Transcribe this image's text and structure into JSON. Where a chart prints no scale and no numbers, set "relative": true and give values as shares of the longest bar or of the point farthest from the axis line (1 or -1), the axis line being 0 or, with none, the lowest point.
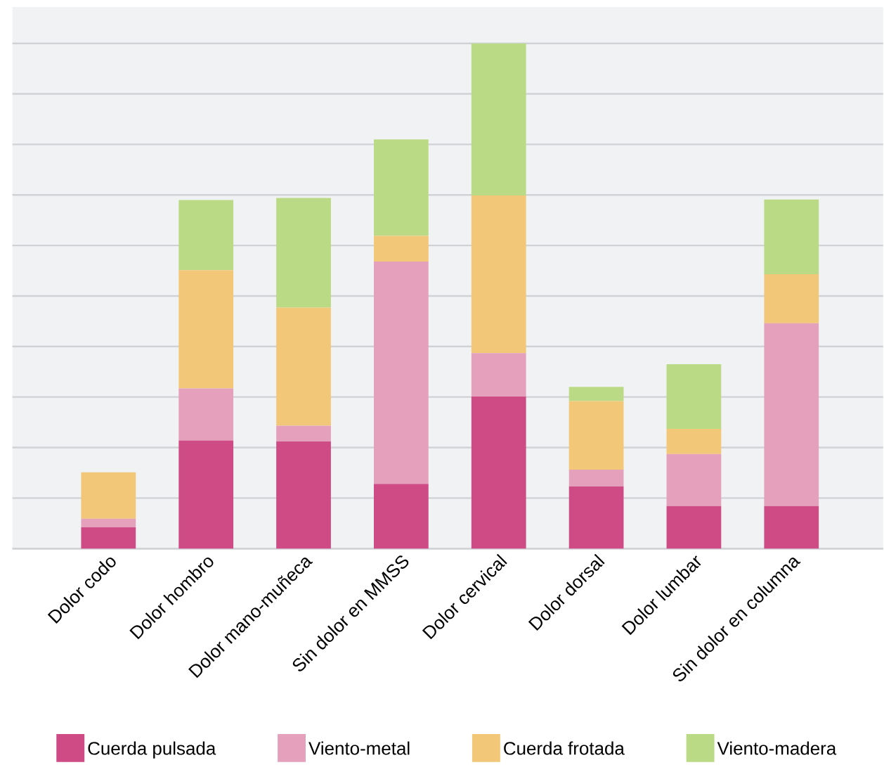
{
  "chart_data": {
    "type": "bar",
    "stacked": true,
    "relative": true,
    "grid": "y",
    "legend": "bottom",
    "categories": [
      "Dolor codo",
      "Dolor hombro",
      "Dolor mano-muñeca",
      "Sin dolor en MMSS",
      "Dolor cervical",
      "Dolor dorsal",
      "Dolor lumbar",
      "Sin dolor en columna"
    ],
    "series": [
      {
        "name": "Cuerda pulsada",
        "color": "#cf4b86",
        "values": [
          0.042,
          0.214,
          0.212,
          0.128,
          0.301,
          0.123,
          0.084,
          0.084
        ]
      },
      {
        "name": "Viento-metal",
        "color": "#e5a0bb",
        "values": [
          0.017,
          0.103,
          0.031,
          0.44,
          0.086,
          0.033,
          0.103,
          0.362
        ]
      },
      {
        "name": "Cuerda frotada",
        "color": "#f3c778",
        "values": [
          0.092,
          0.234,
          0.234,
          0.051,
          0.312,
          0.136,
          0.05,
          0.097
        ]
      },
      {
        "name": "Viento-madera",
        "color": "#bbda85",
        "values": [
          0,
          0.139,
          0.217,
          0.191,
          0.301,
          0.028,
          0.128,
          0.148
        ]
      }
    ]
  }
}
